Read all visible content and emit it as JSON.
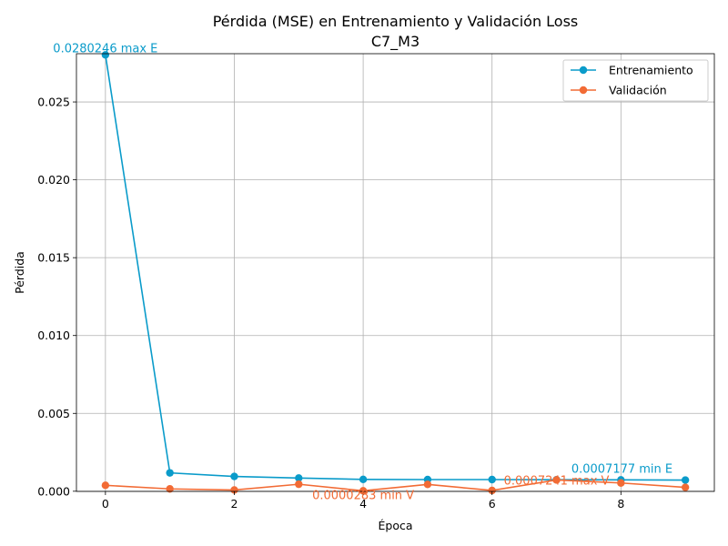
{
  "chart_data": {
    "type": "line",
    "title": "Pérdida (MSE) en Entrenamiento y Validación Loss",
    "subtitle": "C7_M3",
    "xlabel": "Época",
    "ylabel": "Pérdida",
    "xlim": [
      -0.45,
      9.45
    ],
    "ylim": [
      -1e-05,
      0.0281
    ],
    "x": [
      0,
      1,
      2,
      3,
      4,
      5,
      6,
      7,
      8,
      9
    ],
    "x_ticks": [
      0,
      2,
      4,
      6,
      8
    ],
    "y_ticks": [
      0.0,
      0.005,
      0.01,
      0.015,
      0.02,
      0.025
    ],
    "y_tick_labels": [
      "0.000",
      "0.005",
      "0.010",
      "0.015",
      "0.020",
      "0.025"
    ],
    "grid": true,
    "legend_position": "top-right",
    "series": [
      {
        "name": "Entrenamiento",
        "color": "#0a9bca",
        "values": [
          0.0280246,
          0.00118,
          0.00095,
          0.00085,
          0.00076,
          0.00075,
          0.00075,
          0.00074,
          0.00073,
          0.0007177
        ]
      },
      {
        "name": "Validación",
        "color": "#f26b35",
        "values": [
          0.00038,
          0.00015,
          8e-05,
          0.00045,
          2.83e-05,
          0.00044,
          5e-05,
          0.0007241,
          0.00053,
          0.00025
        ]
      }
    ],
    "annotations": [
      {
        "text": "0.0280246 max E",
        "x": 0,
        "y": 0.0280246,
        "color": "#0a9bca",
        "anchor": "middle"
      },
      {
        "text": "0.0007177 min E",
        "x": 9,
        "y": 0.0007177,
        "color": "#0a9bca",
        "anchor": "end"
      },
      {
        "text": "0.0000283 min V",
        "x": 4,
        "y": 2.83e-05,
        "color": "#f26b35",
        "anchor": "middle"
      },
      {
        "text": "0.0007241 max V",
        "x": 7,
        "y": 0.0007241,
        "color": "#f26b35",
        "anchor": "middle"
      }
    ]
  }
}
